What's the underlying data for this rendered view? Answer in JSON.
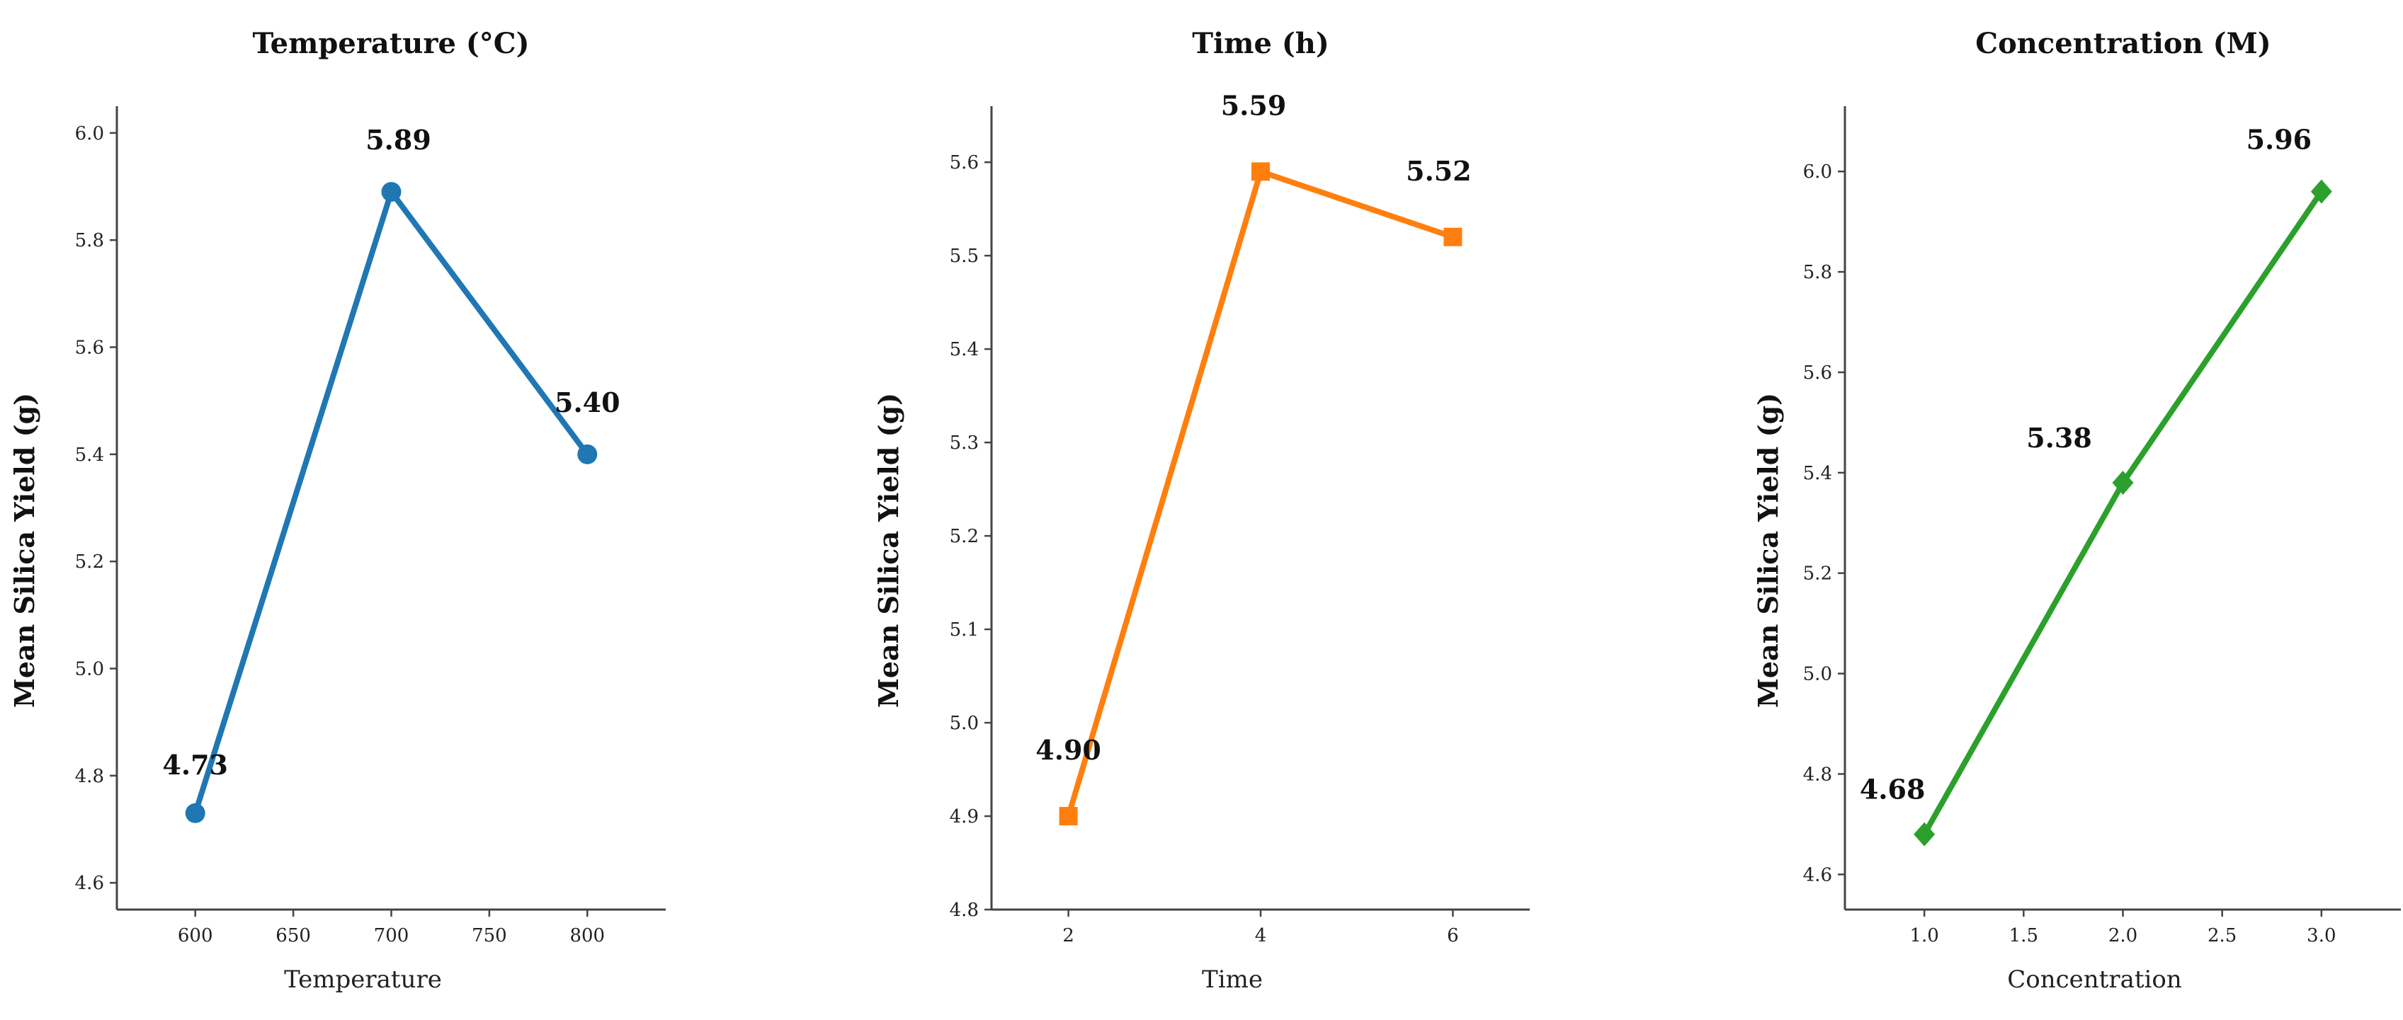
{
  "chart_data": [
    {
      "type": "line",
      "title": "Temperature (°C)",
      "xlabel": "Temperature",
      "ylabel": "Mean Silica Yield (g)",
      "color": "#1f77b4",
      "marker": "circle",
      "x": [
        600,
        700,
        800
      ],
      "y": [
        4.73,
        5.89,
        5.4
      ],
      "labels": [
        "4.73",
        "5.89",
        "5.40"
      ],
      "xticks": [
        600,
        650,
        700,
        750,
        800
      ],
      "xtick_labels": [
        "600",
        "650",
        "700",
        "750",
        "800"
      ],
      "yticks": [
        4.6,
        4.8,
        5.0,
        5.2,
        5.4,
        5.6,
        5.8,
        6.0
      ],
      "ytick_labels": [
        "4.6",
        "4.8",
        "5.0",
        "5.2",
        "5.4",
        "5.6",
        "5.8",
        "6.0"
      ],
      "xlim": [
        560,
        840
      ],
      "ylim": [
        4.55,
        6.05
      ]
    },
    {
      "type": "line",
      "title": "Time (h)",
      "xlabel": "Time",
      "ylabel": "Mean Silica Yield (g)",
      "color": "#ff7f0e",
      "marker": "square",
      "x": [
        2,
        4,
        6
      ],
      "y": [
        4.9,
        5.59,
        5.52
      ],
      "labels": [
        "4.90",
        "5.59",
        "5.52"
      ],
      "xticks": [
        2,
        4,
        6
      ],
      "xtick_labels": [
        "2",
        "4",
        "6"
      ],
      "yticks": [
        4.8,
        4.9,
        5.0,
        5.1,
        5.2,
        5.3,
        5.4,
        5.5,
        5.6
      ],
      "ytick_labels": [
        "4.8",
        "4.9",
        "5.0",
        "5.1",
        "5.2",
        "5.3",
        "5.4",
        "5.5",
        "5.6"
      ],
      "xlim": [
        1.2,
        6.8
      ],
      "ylim": [
        4.8,
        5.66
      ]
    },
    {
      "type": "line",
      "title": "Concentration (M)",
      "xlabel": "Concentration",
      "ylabel": "Mean Silica Yield (g)",
      "color": "#2ca02c",
      "marker": "diamond",
      "x": [
        1.0,
        2.0,
        3.0
      ],
      "y": [
        4.68,
        5.38,
        5.96
      ],
      "labels": [
        "4.68",
        "5.38",
        "5.96"
      ],
      "xticks": [
        1.0,
        1.5,
        2.0,
        2.5,
        3.0
      ],
      "xtick_labels": [
        "1.0",
        "1.5",
        "2.0",
        "2.5",
        "3.0"
      ],
      "yticks": [
        4.6,
        4.8,
        5.0,
        5.2,
        5.4,
        5.6,
        5.8,
        6.0
      ],
      "ytick_labels": [
        "4.6",
        "4.8",
        "5.0",
        "5.2",
        "5.4",
        "5.6",
        "5.8",
        "6.0"
      ],
      "xlim": [
        0.6,
        3.4
      ],
      "ylim": [
        4.53,
        6.13
      ]
    }
  ]
}
